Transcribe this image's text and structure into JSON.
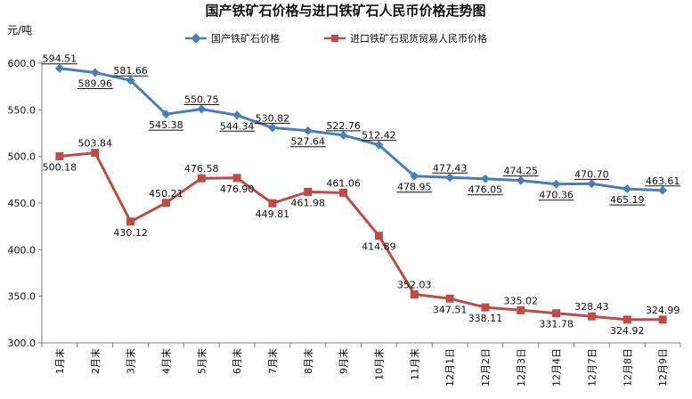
{
  "chart_data": {
    "type": "line",
    "title": "国产铁矿石价格与进口铁矿石人民币价格走势图",
    "ylabel": "元/吨",
    "ylim": [
      300,
      600
    ],
    "yticks": [
      "300.0",
      "350.0",
      "400.0",
      "450.0",
      "500.0",
      "550.0",
      "600.0"
    ],
    "categories": [
      "1月末",
      "2月末",
      "3月末",
      "4月末",
      "5月末",
      "6月末",
      "7月末",
      "8月末",
      "9月末",
      "10月末",
      "11月末",
      "12月1日",
      "12月2日",
      "12月3日",
      "12月4日",
      "12月7日",
      "12月8日",
      "12月9日"
    ],
    "grid": false,
    "legend_position": "top",
    "series": [
      {
        "name": "国产铁矿石价格",
        "color": "#4A7EBB",
        "marker": "diamond",
        "values": [
          594.51,
          589.96,
          581.66,
          545.38,
          550.75,
          544.34,
          530.82,
          527.64,
          522.76,
          512.42,
          478.95,
          477.43,
          476.05,
          474.25,
          470.36,
          470.7,
          465.19,
          463.61
        ],
        "labels": [
          "594.51",
          "589.96",
          "581.66",
          "545.38",
          "550.75",
          "544.34",
          "530.82",
          "527.64",
          "522.76",
          "512.42",
          "478.95",
          "477.43",
          "476.05",
          "474.25",
          "470.36",
          "470.70",
          "465.19",
          "463.61"
        ]
      },
      {
        "name": "进口铁矿石现货贸易人民币价格",
        "color": "#BE4B48",
        "marker": "square",
        "values": [
          500.18,
          503.84,
          430.12,
          450.21,
          476.58,
          476.9,
          449.81,
          461.98,
          461.06,
          414.89,
          352.03,
          347.51,
          338.11,
          335.02,
          331.78,
          328.43,
          324.92,
          324.99
        ],
        "labels": [
          "500.18",
          "503.84",
          "430.12",
          "450.21",
          "476.58",
          "476.90",
          "449.81",
          "461.98",
          "461.06",
          "414.89",
          "352.03",
          "347.51",
          "338.11",
          "335.02",
          "331.78",
          "328.43",
          "324.92",
          "324.99"
        ]
      }
    ]
  }
}
